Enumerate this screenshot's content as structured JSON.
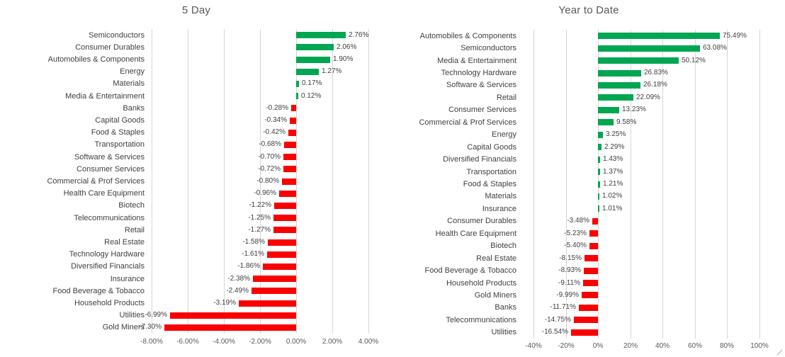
{
  "colors": {
    "positive": "#00A651",
    "negative": "#FB0000",
    "gridline": "#D6D6D6",
    "label_text": "#404040",
    "value_text": "#404040",
    "axis_text": "#595959",
    "title_text": "#595959",
    "background": "#FFFFFF"
  },
  "chart_data": [
    {
      "type": "bar",
      "orientation": "horizontal",
      "title": "5 Day",
      "grid": true,
      "legend": false,
      "xlim": [
        -8,
        4
      ],
      "tick_values": [
        -8,
        -6,
        -4,
        -2,
        0,
        2,
        4
      ],
      "tick_labels": [
        "-8.00%",
        "-6.00%",
        "-4.00%",
        "-2.00%",
        "0.00%",
        "2.00%",
        "4.00%"
      ],
      "categories": [
        "Semiconductors",
        "Consumer Durables",
        "Automobiles & Components",
        "Energy",
        "Materials",
        "Media & Entertainment",
        "Banks",
        "Capital Goods",
        "Food & Staples",
        "Transportation",
        "Software & Services",
        "Consumer Services",
        "Commercial & Prof Services",
        "Health Care Equipment",
        "Biotech",
        "Telecommunications",
        "Retail",
        "Real Estate",
        "Technology Hardware",
        "Diversified Financials",
        "Insurance",
        "Food Beverage & Tobacco",
        "Household Products",
        "Utilities",
        "Gold Miners"
      ],
      "values": [
        2.76,
        2.06,
        1.9,
        1.27,
        0.17,
        0.12,
        -0.28,
        -0.34,
        -0.42,
        -0.68,
        -0.7,
        -0.72,
        -0.8,
        -0.96,
        -1.22,
        -1.25,
        -1.27,
        -1.58,
        -1.61,
        -1.86,
        -2.38,
        -2.49,
        -3.19,
        -6.99,
        -7.3
      ],
      "value_labels": [
        "2.76%",
        "2.06%",
        "1.90%",
        "1.27%",
        "0.17%",
        "0.12%",
        "-0.28%",
        "-0.34%",
        "-0.42%",
        "-0.68%",
        "-0.70%",
        "-0.72%",
        "-0.80%",
        "-0.96%",
        "-1.22%",
        "-1.25%",
        "-1.27%",
        "-1.58%",
        "-1.61%",
        "-1.86%",
        "-2.38%",
        "-2.49%",
        "-3.19%",
        "-6.99%",
        "-7.30%"
      ]
    },
    {
      "type": "bar",
      "orientation": "horizontal",
      "title": "Year to Date",
      "grid": true,
      "legend": false,
      "xlim": [
        -40,
        100
      ],
      "tick_values": [
        -40,
        -20,
        0,
        20,
        40,
        60,
        80,
        100
      ],
      "tick_labels": [
        "-40%",
        "-20%",
        "0%",
        "20%",
        "40%",
        "60%",
        "80%",
        "100%"
      ],
      "categories": [
        "Automobiles & Components",
        "Semiconductors",
        "Media & Entertainment",
        "Technology Hardware",
        "Software & Services",
        "Retail",
        "Consumer Services",
        "Commercial & Prof Services",
        "Energy",
        "Capital Goods",
        "Diversified Financials",
        "Transportation",
        "Food & Staples",
        "Materials",
        "Insurance",
        "Consumer Durables",
        "Health Care Equipment",
        "Biotech",
        "Real Estate",
        "Food Beverage & Tobacco",
        "Household Products",
        "Gold Miners",
        "Banks",
        "Telecommunications",
        "Utilities"
      ],
      "values": [
        75.49,
        63.08,
        50.12,
        26.83,
        26.18,
        22.09,
        13.23,
        9.58,
        3.25,
        2.29,
        1.43,
        1.37,
        1.21,
        1.02,
        1.01,
        -3.48,
        -5.23,
        -5.4,
        -8.15,
        -8.93,
        -9.11,
        -9.99,
        -11.71,
        -14.75,
        -16.54
      ],
      "value_labels": [
        "75.49%",
        "63.08%",
        "50.12%",
        "26.83%",
        "26.18%",
        "22.09%",
        "13.23%",
        "9.58%",
        "3.25%",
        "2.29%",
        "1.43%",
        "1.37%",
        "1.21%",
        "1.02%",
        "1.01%",
        "-3.48%",
        "-5.23%",
        "-5.40%",
        "-8.15%",
        "-8.93%",
        "-9.11%",
        "-9.99%",
        "-11.71%",
        "-14.75%",
        "-16.54%"
      ]
    }
  ]
}
